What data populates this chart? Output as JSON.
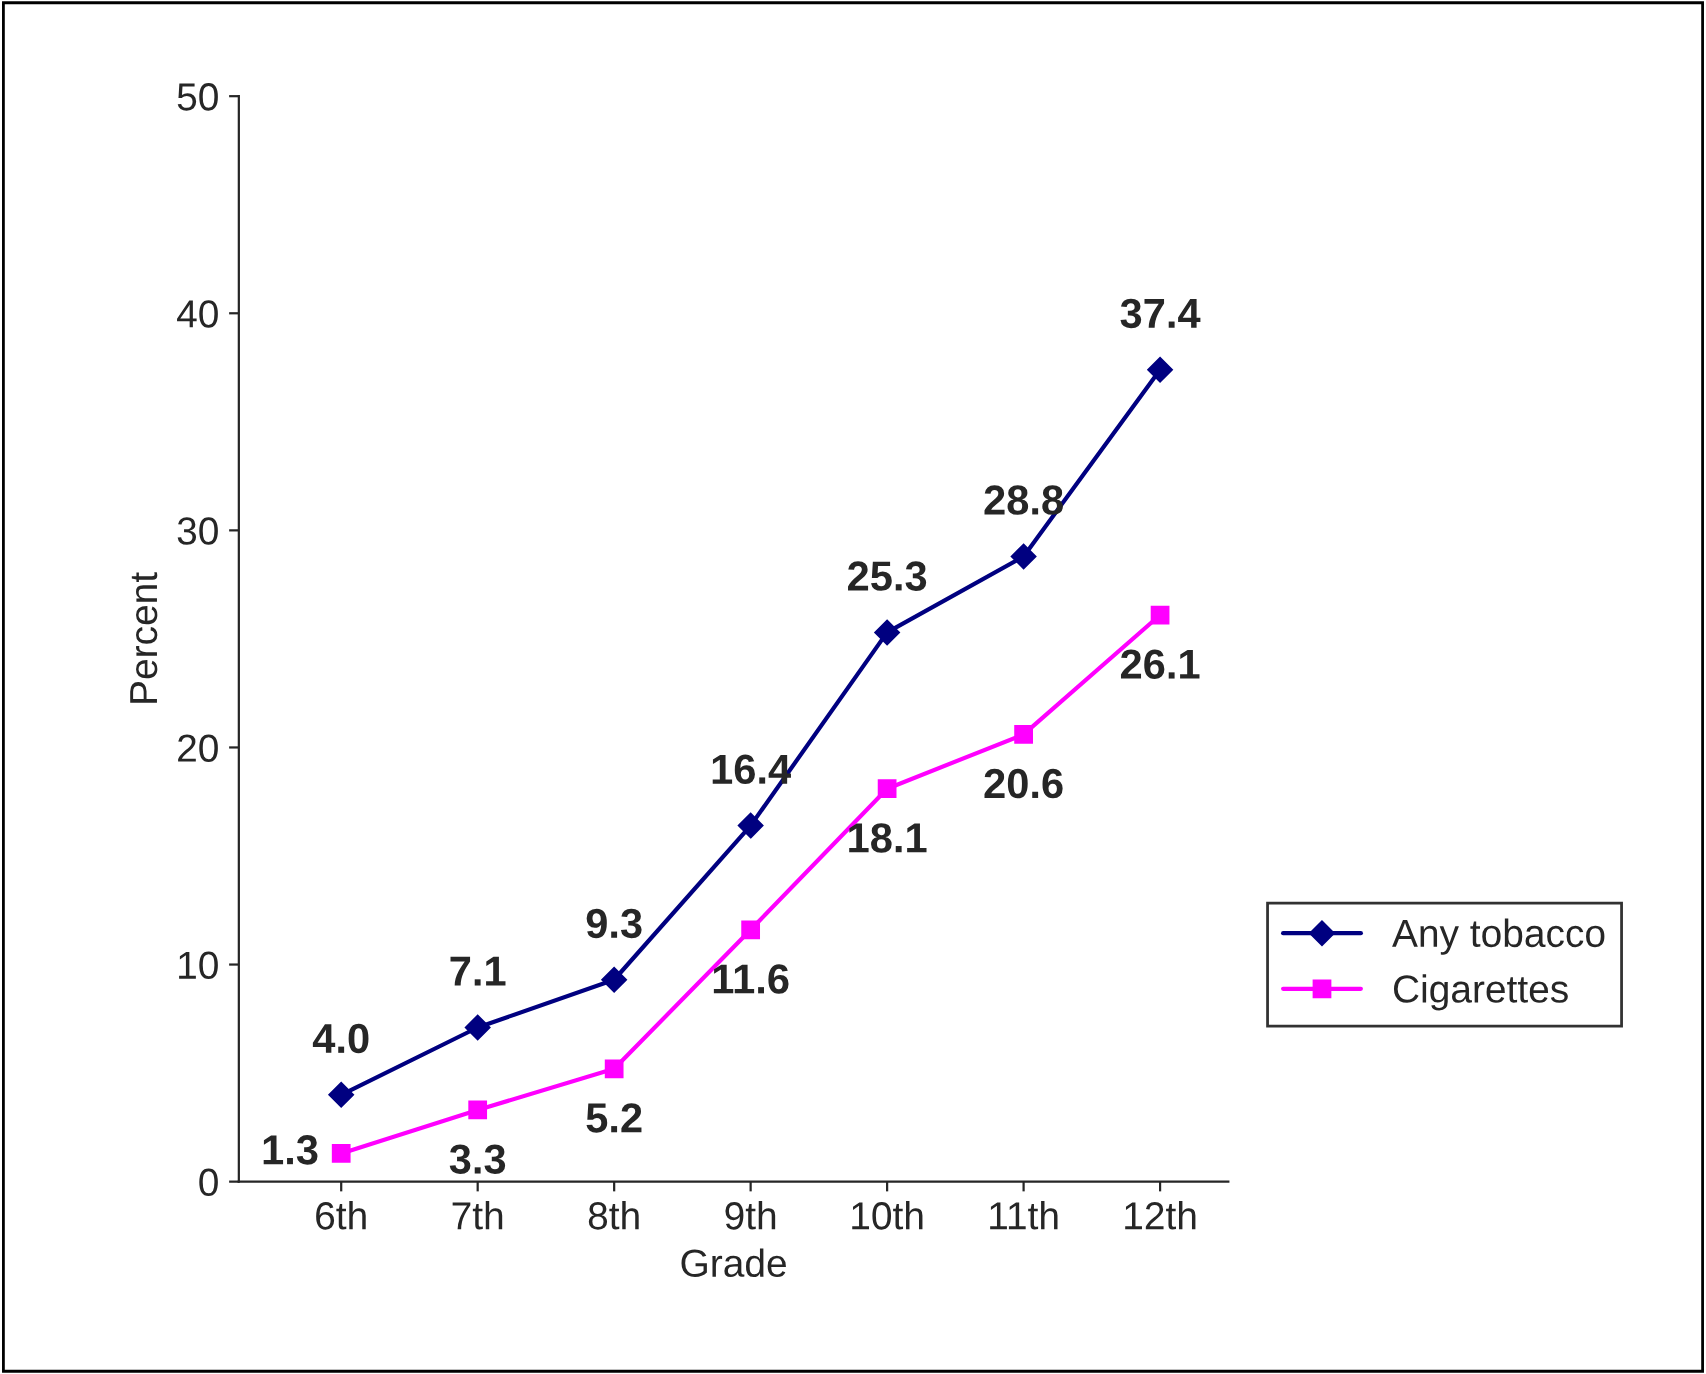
{
  "chart_data": {
    "type": "line",
    "xlabel": "Grade",
    "ylabel": "Percent",
    "categories": [
      "6th",
      "7th",
      "8th",
      "9th",
      "10th",
      "11th",
      "12th"
    ],
    "series": [
      {
        "name": "Any tobacco",
        "color": "#000080",
        "marker": "diamond",
        "values": [
          4.0,
          7.1,
          9.3,
          16.4,
          25.3,
          28.8,
          37.4
        ],
        "value_labels": [
          "4.0",
          "7.1",
          "9.3",
          "16.4",
          "25.3",
          "28.8",
          "37.4"
        ]
      },
      {
        "name": "Cigarettes",
        "color": "#ff00ff",
        "marker": "square",
        "values": [
          1.3,
          3.3,
          5.2,
          11.6,
          18.1,
          20.6,
          26.1
        ],
        "value_labels": [
          "1.3",
          "3.3",
          "5.2",
          "11.6",
          "18.1",
          "20.6",
          "26.1"
        ]
      }
    ],
    "ylim": [
      0,
      50
    ],
    "yticks": [
      0,
      10,
      20,
      30,
      40,
      50
    ],
    "grid": false,
    "legend": "right",
    "line_style": "solid"
  }
}
